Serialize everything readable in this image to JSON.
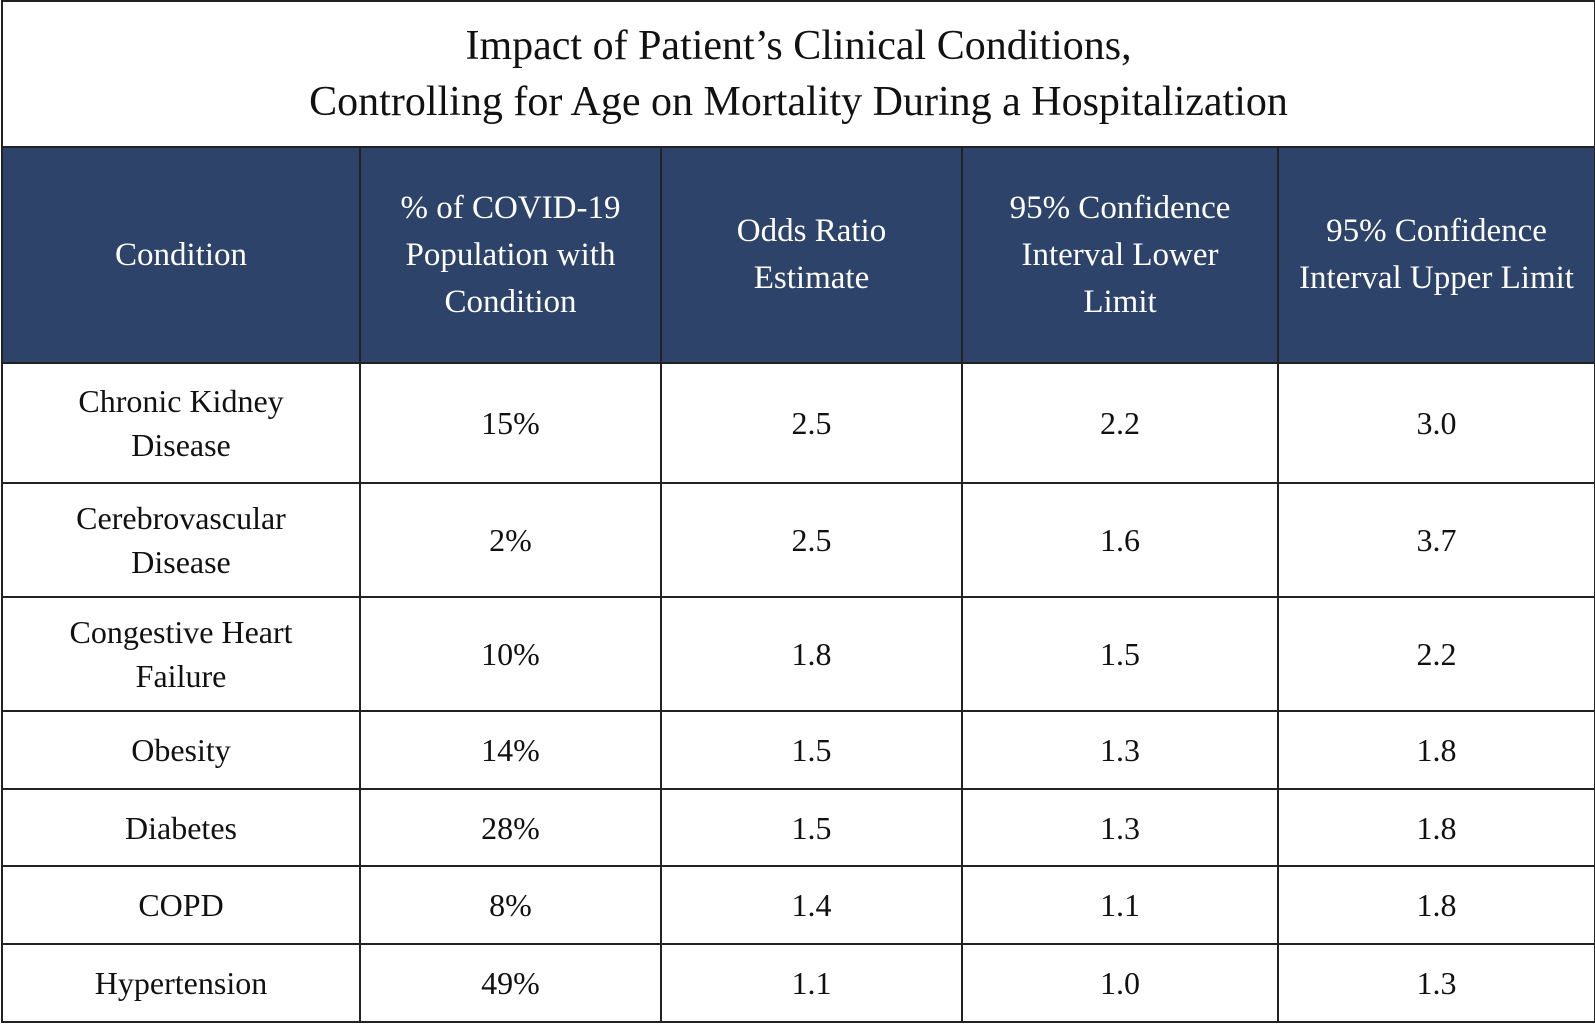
{
  "title": [
    "Impact of Patient’s Clinical Conditions,",
    "Controlling for Age on Mortality During a Hospitalization"
  ],
  "table": {
    "header": [
      "Condition",
      "% of COVID-19 Population with Condition",
      "Odds Ratio Estimate",
      "95% Confidence Interval Lower Limit",
      "95% Confidence Interval Upper Limit"
    ],
    "rows": [
      [
        "Chronic Kidney Disease",
        "15%",
        "2.5",
        "2.2",
        "3.0"
      ],
      [
        "Cerebrovascular Disease",
        "2%",
        "2.5",
        "1.6",
        "3.7"
      ],
      [
        "Congestive Heart Failure",
        "10%",
        "1.8",
        "1.5",
        "2.2"
      ],
      [
        "Obesity",
        "14%",
        "1.5",
        "1.3",
        "1.8"
      ],
      [
        "Diabetes",
        "28%",
        "1.5",
        "1.3",
        "1.8"
      ],
      [
        "COPD",
        "8%",
        "1.4",
        "1.1",
        "1.8"
      ],
      [
        "Hypertension",
        "49%",
        "1.1",
        "1.0",
        "1.3"
      ]
    ]
  }
}
